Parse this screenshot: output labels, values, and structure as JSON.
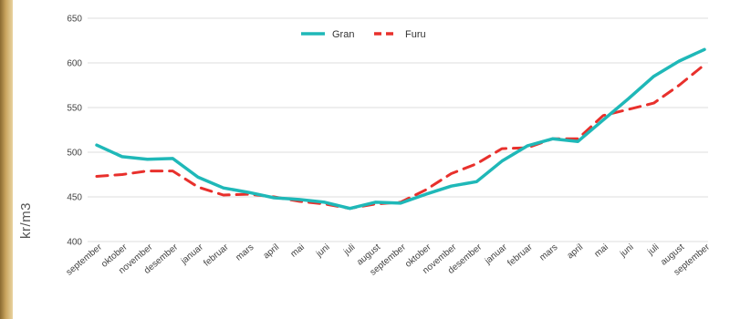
{
  "chart_data": {
    "type": "line",
    "title": "",
    "xlabel": "",
    "ylabel": "kr/m3",
    "ylim": [
      400,
      650
    ],
    "yticks": [
      400,
      450,
      500,
      550,
      600,
      650
    ],
    "grid": true,
    "legend_position": "top-center",
    "categories": [
      "september",
      "oktober",
      "november",
      "desember",
      "januar",
      "februar",
      "mars",
      "april",
      "mai",
      "juni",
      "juli",
      "august",
      "september",
      "oktober",
      "november",
      "desember",
      "januar",
      "februar",
      "mars",
      "april",
      "mai",
      "juni",
      "juli",
      "august",
      "september"
    ],
    "series": [
      {
        "name": "Gran",
        "color": "#1fb8b8",
        "style": "solid",
        "values": [
          508,
          495,
          492,
          493,
          472,
          460,
          455,
          449,
          447,
          444,
          437,
          444,
          443,
          453,
          462,
          467,
          490,
          507,
          515,
          512,
          536,
          560,
          585,
          602,
          615
        ]
      },
      {
        "name": "Furu",
        "color": "#e8302c",
        "style": "dashed",
        "values": [
          473,
          475,
          479,
          479,
          461,
          452,
          453,
          450,
          445,
          442,
          437,
          442,
          444,
          458,
          476,
          487,
          504,
          505,
          515,
          515,
          541,
          548,
          555,
          575,
          598
        ]
      }
    ]
  }
}
